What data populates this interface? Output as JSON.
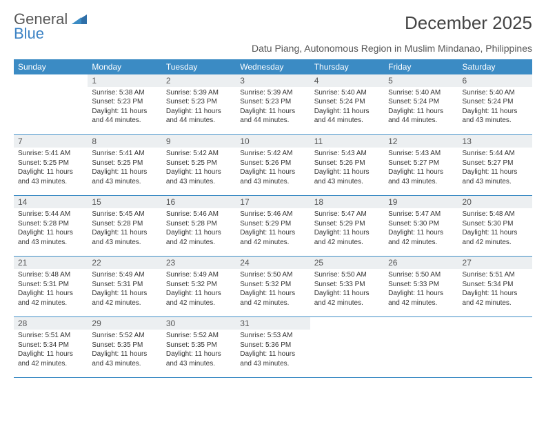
{
  "logo": {
    "line1": "General",
    "line2": "Blue"
  },
  "title": "December 2025",
  "subtitle": "Datu Piang, Autonomous Region in Muslim Mindanao, Philippines",
  "colors": {
    "header_bg": "#3b8bc4",
    "header_text": "#ffffff",
    "daynum_bg": "#eceff1",
    "border": "#3b8bc4",
    "logo_gray": "#5a5a5a",
    "logo_blue": "#3b82c4",
    "body_text": "#333333"
  },
  "weekdays": [
    "Sunday",
    "Monday",
    "Tuesday",
    "Wednesday",
    "Thursday",
    "Friday",
    "Saturday"
  ],
  "start_offset": 1,
  "days": [
    {
      "n": 1,
      "sunrise": "5:38 AM",
      "sunset": "5:23 PM",
      "daylight": "11 hours and 44 minutes."
    },
    {
      "n": 2,
      "sunrise": "5:39 AM",
      "sunset": "5:23 PM",
      "daylight": "11 hours and 44 minutes."
    },
    {
      "n": 3,
      "sunrise": "5:39 AM",
      "sunset": "5:23 PM",
      "daylight": "11 hours and 44 minutes."
    },
    {
      "n": 4,
      "sunrise": "5:40 AM",
      "sunset": "5:24 PM",
      "daylight": "11 hours and 44 minutes."
    },
    {
      "n": 5,
      "sunrise": "5:40 AM",
      "sunset": "5:24 PM",
      "daylight": "11 hours and 44 minutes."
    },
    {
      "n": 6,
      "sunrise": "5:40 AM",
      "sunset": "5:24 PM",
      "daylight": "11 hours and 43 minutes."
    },
    {
      "n": 7,
      "sunrise": "5:41 AM",
      "sunset": "5:25 PM",
      "daylight": "11 hours and 43 minutes."
    },
    {
      "n": 8,
      "sunrise": "5:41 AM",
      "sunset": "5:25 PM",
      "daylight": "11 hours and 43 minutes."
    },
    {
      "n": 9,
      "sunrise": "5:42 AM",
      "sunset": "5:25 PM",
      "daylight": "11 hours and 43 minutes."
    },
    {
      "n": 10,
      "sunrise": "5:42 AM",
      "sunset": "5:26 PM",
      "daylight": "11 hours and 43 minutes."
    },
    {
      "n": 11,
      "sunrise": "5:43 AM",
      "sunset": "5:26 PM",
      "daylight": "11 hours and 43 minutes."
    },
    {
      "n": 12,
      "sunrise": "5:43 AM",
      "sunset": "5:27 PM",
      "daylight": "11 hours and 43 minutes."
    },
    {
      "n": 13,
      "sunrise": "5:44 AM",
      "sunset": "5:27 PM",
      "daylight": "11 hours and 43 minutes."
    },
    {
      "n": 14,
      "sunrise": "5:44 AM",
      "sunset": "5:28 PM",
      "daylight": "11 hours and 43 minutes."
    },
    {
      "n": 15,
      "sunrise": "5:45 AM",
      "sunset": "5:28 PM",
      "daylight": "11 hours and 43 minutes."
    },
    {
      "n": 16,
      "sunrise": "5:46 AM",
      "sunset": "5:28 PM",
      "daylight": "11 hours and 42 minutes."
    },
    {
      "n": 17,
      "sunrise": "5:46 AM",
      "sunset": "5:29 PM",
      "daylight": "11 hours and 42 minutes."
    },
    {
      "n": 18,
      "sunrise": "5:47 AM",
      "sunset": "5:29 PM",
      "daylight": "11 hours and 42 minutes."
    },
    {
      "n": 19,
      "sunrise": "5:47 AM",
      "sunset": "5:30 PM",
      "daylight": "11 hours and 42 minutes."
    },
    {
      "n": 20,
      "sunrise": "5:48 AM",
      "sunset": "5:30 PM",
      "daylight": "11 hours and 42 minutes."
    },
    {
      "n": 21,
      "sunrise": "5:48 AM",
      "sunset": "5:31 PM",
      "daylight": "11 hours and 42 minutes."
    },
    {
      "n": 22,
      "sunrise": "5:49 AM",
      "sunset": "5:31 PM",
      "daylight": "11 hours and 42 minutes."
    },
    {
      "n": 23,
      "sunrise": "5:49 AM",
      "sunset": "5:32 PM",
      "daylight": "11 hours and 42 minutes."
    },
    {
      "n": 24,
      "sunrise": "5:50 AM",
      "sunset": "5:32 PM",
      "daylight": "11 hours and 42 minutes."
    },
    {
      "n": 25,
      "sunrise": "5:50 AM",
      "sunset": "5:33 PM",
      "daylight": "11 hours and 42 minutes."
    },
    {
      "n": 26,
      "sunrise": "5:50 AM",
      "sunset": "5:33 PM",
      "daylight": "11 hours and 42 minutes."
    },
    {
      "n": 27,
      "sunrise": "5:51 AM",
      "sunset": "5:34 PM",
      "daylight": "11 hours and 42 minutes."
    },
    {
      "n": 28,
      "sunrise": "5:51 AM",
      "sunset": "5:34 PM",
      "daylight": "11 hours and 42 minutes."
    },
    {
      "n": 29,
      "sunrise": "5:52 AM",
      "sunset": "5:35 PM",
      "daylight": "11 hours and 43 minutes."
    },
    {
      "n": 30,
      "sunrise": "5:52 AM",
      "sunset": "5:35 PM",
      "daylight": "11 hours and 43 minutes."
    },
    {
      "n": 31,
      "sunrise": "5:53 AM",
      "sunset": "5:36 PM",
      "daylight": "11 hours and 43 minutes."
    }
  ],
  "labels": {
    "sunrise": "Sunrise:",
    "sunset": "Sunset:",
    "daylight": "Daylight:"
  }
}
